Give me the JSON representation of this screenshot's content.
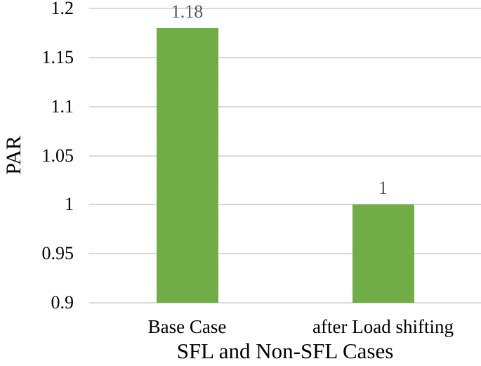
{
  "chart_data": {
    "type": "bar",
    "title": "",
    "categories": [
      "Base Case",
      "after Load shifting"
    ],
    "values": [
      1.18,
      1
    ],
    "data_labels": [
      "1.18",
      "1"
    ],
    "xlabel": "SFL and Non-SFL Cases",
    "ylabel": "PAR",
    "ylim": [
      0.9,
      1.2
    ],
    "yticks": [
      1.2,
      1.15,
      1.1,
      1.05,
      1,
      0.95,
      0.9
    ],
    "ytick_labels": [
      "1.2",
      "1.15",
      "1.1",
      "1.05",
      "1",
      "0.95",
      "0.9"
    ],
    "grid": "horizontal",
    "legend": "none",
    "colors": {
      "bar_fill": "#70AD47",
      "gridline": "#D9D9D9",
      "data_label": "#595959",
      "axis_text": "#000000"
    }
  }
}
